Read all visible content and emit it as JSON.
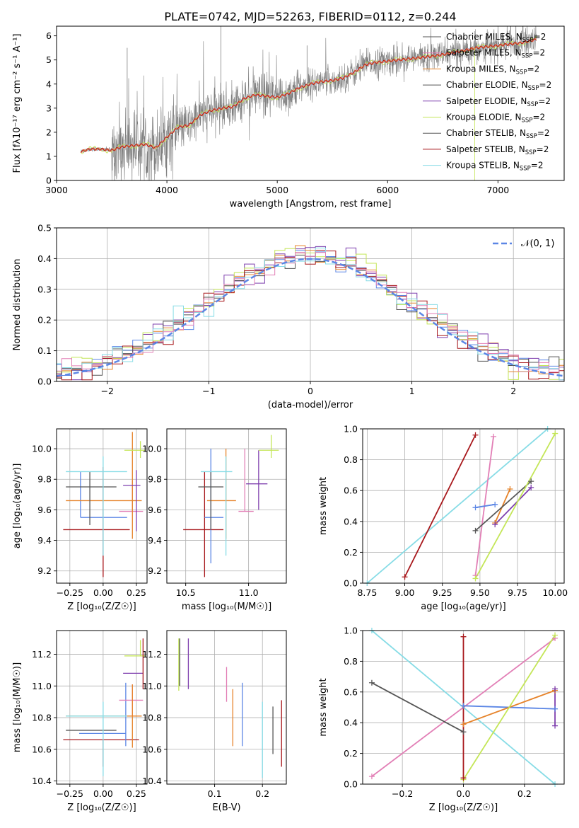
{
  "title": "PLATE=0742, MJD=52263, FIBERID=0112, z=0.244",
  "colors": {
    "C0": "#5b86e5",
    "C1": "#e6832a",
    "C2": "#7e3fae",
    "C3": "#c4e658",
    "C4": "#555555",
    "C5": "#a8181c",
    "C6": "#87dce6",
    "C7": "#e27fb6",
    "data": "#7f7f7f"
  },
  "chart_data": [
    {
      "id": "spectrum",
      "type": "line",
      "xlabel": "wavelength [Angstrom, rest frame]",
      "ylabel": "Flux [f$_\\lambda$ $10^{-17}$ erg cm$^{-2}$ s$^{-1}$ A$^{-1}$]",
      "ylabel_plain": "Flux [fλ10⁻¹⁷ erg cm⁻² s⁻¹ A⁻¹]",
      "xlim": [
        3000,
        7600
      ],
      "ylim": [
        0,
        6.4
      ],
      "xticks": [
        "3000",
        "4000",
        "5000",
        "6000",
        "7000"
      ],
      "yticks": [
        "0",
        "1",
        "2",
        "3",
        "4",
        "5",
        "6"
      ],
      "legend_position": "right",
      "legend": [
        {
          "label": "Chabrier MILES, N",
          "sub": "SSP",
          "tail": "=2",
          "color": "C4"
        },
        {
          "label": "Salpeter MILES, N",
          "sub": "SSP",
          "tail": "=2",
          "color": "C7"
        },
        {
          "label": "Kroupa MILES, N",
          "sub": "SSP",
          "tail": "=2",
          "color": "C1"
        },
        {
          "label": "Chabrier ELODIE, N",
          "sub": "SSP",
          "tail": "=2",
          "color": "C4"
        },
        {
          "label": "Salpeter ELODIE, N",
          "sub": "SSP",
          "tail": "=2",
          "color": "C2"
        },
        {
          "label": "Kroupa ELODIE, N",
          "sub": "SSP",
          "tail": "=2",
          "color": "C3"
        },
        {
          "label": "Chabrier STELIB, N",
          "sub": "SSP",
          "tail": "=2",
          "color": "C4"
        },
        {
          "label": "Salpeter STELIB, N",
          "sub": "SSP",
          "tail": "=2",
          "color": "C5"
        },
        {
          "label": "Kroupa STELIB, N",
          "sub": "SSP",
          "tail": "=2",
          "color": "C6"
        }
      ],
      "model_continuum": {
        "x": [
          3220,
          3300,
          3400,
          3500,
          3600,
          3700,
          3800,
          3900,
          4000,
          4100,
          4200,
          4300,
          4400,
          4500,
          4600,
          4700,
          4800,
          4900,
          5000,
          5100,
          5200,
          5300,
          5400,
          5500,
          5600,
          5700,
          5800,
          5900,
          6000,
          6200,
          6400,
          6600,
          6800,
          7000,
          7200,
          7350
        ],
        "y": [
          1.2,
          1.3,
          1.3,
          1.25,
          1.4,
          1.45,
          1.5,
          1.35,
          1.8,
          2.2,
          2.3,
          2.7,
          2.9,
          3.0,
          3.05,
          3.4,
          3.55,
          3.5,
          3.45,
          3.6,
          3.85,
          4.0,
          4.1,
          4.15,
          4.25,
          4.5,
          4.8,
          4.9,
          4.95,
          5.05,
          5.15,
          5.3,
          5.5,
          5.6,
          5.7,
          5.85
        ]
      }
    },
    {
      "id": "residuals",
      "type": "step",
      "xlabel": "(data-model)/error",
      "ylabel": "Normed distribution",
      "xlim": [
        -2.5,
        2.5
      ],
      "ylim": [
        0,
        0.5
      ],
      "xticks": [
        "−2",
        "−1",
        "0",
        "1",
        "2"
      ],
      "yticks": [
        "0.0",
        "0.1",
        "0.2",
        "0.3",
        "0.4",
        "0.5"
      ],
      "grid": true,
      "legend": [
        {
          "label": "𝒩(0, 1)",
          "color": "C0",
          "style": "dashed"
        }
      ],
      "bin_width": 0.1
    },
    {
      "id": "age-Z",
      "type": "scatter-errorbar",
      "xlabel": "Z [log₁₀(Z/Z☉)]",
      "ylabel": "age  [log₁₀(age/yr)]",
      "xlim": [
        -0.35,
        0.33
      ],
      "ylim": [
        9.12,
        10.13
      ],
      "xticks": [
        "−0.25",
        "0.00",
        "0.25"
      ],
      "yticks": [
        "9.2",
        "9.4",
        "9.6",
        "9.8",
        "10.0"
      ],
      "grid": true,
      "points": [
        {
          "x": 0.0,
          "y": 9.47,
          "xerr": [
            0.3,
            0.2
          ],
          "yerr": [
            0.31,
            0.41
          ],
          "color": "C5"
        },
        {
          "x": -0.17,
          "y": 9.55,
          "xerr": [
            0.0,
            0.35
          ],
          "yerr": [
            0.0,
            0.3
          ],
          "color": "C0"
        },
        {
          "x": 0.22,
          "y": 9.59,
          "xerr": [
            0.1,
            0.08
          ],
          "yerr": [
            0.0,
            0.2
          ],
          "color": "C7"
        },
        {
          "x": 0.22,
          "y": 9.66,
          "xerr": [
            0.5,
            0.07
          ],
          "yerr": [
            0.25,
            0.45
          ],
          "color": "C1"
        },
        {
          "x": 0.25,
          "y": 9.76,
          "xerr": [
            0.1,
            0.03
          ],
          "yerr": [
            0.3,
            0.1
          ],
          "color": "C2"
        },
        {
          "x": -0.1,
          "y": 9.75,
          "xerr": [
            0.18,
            0.2
          ],
          "yerr": [
            0.25,
            0.1
          ],
          "color": "C4"
        },
        {
          "x": 0.0,
          "y": 9.85,
          "xerr": [
            0.28,
            0.18
          ],
          "yerr": [
            0.55,
            0.1
          ],
          "color": "C6"
        },
        {
          "x": 0.28,
          "y": 9.99,
          "xerr": [
            0.12,
            0.04
          ],
          "yerr": [
            0.05,
            0.06
          ],
          "color": "C3"
        }
      ]
    },
    {
      "id": "age-mass",
      "type": "scatter-errorbar",
      "xlabel": "mass [log₁₀(M/M☉)]",
      "ylabel": "",
      "xlim": [
        10.35,
        11.3
      ],
      "ylim": [
        9.12,
        10.13
      ],
      "xticks": [
        "10.5",
        "11.0"
      ],
      "yticks": [
        "9.2",
        "9.4",
        "9.6",
        "9.8",
        "10.0"
      ],
      "grid": true,
      "points": [
        {
          "x": 10.65,
          "y": 9.47,
          "xerr": [
            0.17,
            0.15
          ],
          "yerr": [
            0.31,
            0.38
          ],
          "color": "C5"
        },
        {
          "x": 10.7,
          "y": 9.55,
          "xerr": [
            0.05,
            0.1
          ],
          "yerr": [
            0.3,
            0.45
          ],
          "color": "C0"
        },
        {
          "x": 10.97,
          "y": 9.59,
          "xerr": [
            0.05,
            0.07
          ],
          "yerr": [
            0.0,
            0.41
          ],
          "color": "C7"
        },
        {
          "x": 10.82,
          "y": 9.66,
          "xerr": [
            0.15,
            0.08
          ],
          "yerr": [
            0.25,
            0.34
          ],
          "color": "C1"
        },
        {
          "x": 11.08,
          "y": 9.77,
          "xerr": [
            0.1,
            0.07
          ],
          "yerr": [
            0.17,
            0.22
          ],
          "color": "C2"
        },
        {
          "x": 10.7,
          "y": 9.75,
          "xerr": [
            0.1,
            0.1
          ],
          "yerr": [
            0.28,
            0.1
          ],
          "color": "C4"
        },
        {
          "x": 10.82,
          "y": 9.85,
          "xerr": [
            0.2,
            0.05
          ],
          "yerr": [
            0.55,
            0.1
          ],
          "color": "C6"
        },
        {
          "x": 11.18,
          "y": 9.99,
          "xerr": [
            0.1,
            0.06
          ],
          "yerr": [
            0.05,
            0.1
          ],
          "color": "C3"
        }
      ]
    },
    {
      "id": "weight-age",
      "type": "line",
      "xlabel": "age  [log₁₀(age/yr)]",
      "ylabel": "mass weight",
      "xlim": [
        8.72,
        10.06
      ],
      "ylim": [
        0,
        1.0
      ],
      "xticks": [
        "8.75",
        "9.00",
        "9.25",
        "9.50",
        "9.75",
        "10.00"
      ],
      "yticks": [
        "0.0",
        "0.2",
        "0.4",
        "0.6",
        "0.8",
        "1.0"
      ],
      "grid": true,
      "series": [
        {
          "color": "C6",
          "x": [
            8.75,
            9.95
          ],
          "y": [
            0.0,
            1.0
          ]
        },
        {
          "color": "C5",
          "x": [
            9.0,
            9.47
          ],
          "y": [
            0.04,
            0.96
          ]
        },
        {
          "color": "C7",
          "x": [
            9.47,
            9.59
          ],
          "y": [
            0.05,
            0.95
          ]
        },
        {
          "color": "C0",
          "x": [
            9.47,
            9.6
          ],
          "y": [
            0.49,
            0.51
          ]
        },
        {
          "color": "C1",
          "x": [
            9.6,
            9.7
          ],
          "y": [
            0.39,
            0.61
          ]
        },
        {
          "color": "C2",
          "x": [
            9.6,
            9.84
          ],
          "y": [
            0.38,
            0.62
          ]
        },
        {
          "color": "C4",
          "x": [
            9.47,
            9.84
          ],
          "y": [
            0.34,
            0.66
          ]
        },
        {
          "color": "C3",
          "x": [
            9.47,
            10.0
          ],
          "y": [
            0.03,
            0.97
          ]
        }
      ]
    },
    {
      "id": "mass-Z",
      "type": "scatter-errorbar",
      "xlabel": "Z [log₁₀(Z/Z☉)]",
      "ylabel": "mass [log₁₀(M/M☉)]",
      "xlim": [
        -0.35,
        0.33
      ],
      "ylim": [
        10.38,
        11.35
      ],
      "xticks": [
        "−0.25",
        "0.00",
        "0.25"
      ],
      "yticks": [
        "10.4",
        "10.6",
        "10.8",
        "11.0",
        "11.2"
      ],
      "grid": true,
      "points": [
        {
          "x": 0.0,
          "y": 10.66,
          "xerr": [
            0.3,
            0.27
          ],
          "yerr": [
            0.17,
            0.0
          ],
          "color": "C5"
        },
        {
          "x": 0.17,
          "y": 10.7,
          "xerr": [
            0.35,
            0.0
          ],
          "yerr": [
            0.08,
            0.32
          ],
          "color": "C0"
        },
        {
          "x": 0.22,
          "y": 10.91,
          "xerr": [
            0.1,
            0.08
          ],
          "yerr": [
            0.1,
            0.1
          ],
          "color": "C7"
        },
        {
          "x": 0.22,
          "y": 10.81,
          "xerr": [
            0.5,
            0.07
          ],
          "yerr": [
            0.2,
            0.2
          ],
          "color": "C1"
        },
        {
          "x": 0.25,
          "y": 11.08,
          "xerr": [
            0.1,
            0.05
          ],
          "yerr": [
            0.0,
            0.0
          ],
          "color": "C2"
        },
        {
          "x": -0.1,
          "y": 10.72,
          "xerr": [
            0.18,
            0.2
          ],
          "yerr": [
            0.0,
            0.0
          ],
          "color": "C4"
        },
        {
          "x": 0.0,
          "y": 10.81,
          "xerr": [
            0.28,
            0.18
          ],
          "yerr": [
            0.38,
            0.09
          ],
          "color": "C6"
        },
        {
          "x": 0.28,
          "y": 11.19,
          "xerr": [
            0.12,
            0.04
          ],
          "yerr": [
            0.0,
            0.1
          ],
          "color": "C3"
        },
        {
          "x": 0.3,
          "y": 11.2,
          "xerr": [
            0.0,
            0.0
          ],
          "yerr": [
            0.22,
            0.1
          ],
          "color": "C5"
        }
      ]
    },
    {
      "id": "mass-EBV",
      "type": "errorbar",
      "xlabel": "E(B-V)",
      "ylabel": "",
      "xlim": [
        0.0,
        0.25
      ],
      "ylim": [
        10.38,
        11.35
      ],
      "xticks": [
        "0.1",
        "0.2"
      ],
      "yticks": [
        "10.4",
        "10.6",
        "10.8",
        "11.0",
        "11.2"
      ],
      "grid": true,
      "points": [
        {
          "x": 0.025,
          "y": 11.14,
          "yerr": [
            0.17,
            0.16
          ],
          "color": "C3"
        },
        {
          "x": 0.027,
          "y": 11.2,
          "yerr": [
            0.2,
            0.1
          ],
          "color": "C4"
        },
        {
          "x": 0.045,
          "y": 11.2,
          "yerr": [
            0.22,
            0.1
          ],
          "color": "C2"
        },
        {
          "x": 0.125,
          "y": 11.0,
          "yerr": [
            0.1,
            0.12
          ],
          "color": "C7"
        },
        {
          "x": 0.138,
          "y": 10.82,
          "yerr": [
            0.2,
            0.16
          ],
          "color": "C1"
        },
        {
          "x": 0.158,
          "y": 10.82,
          "yerr": [
            0.2,
            0.2
          ],
          "color": "C0"
        },
        {
          "x": 0.2,
          "y": 10.66,
          "yerr": [
            0.24,
            0.24
          ],
          "color": "C6"
        },
        {
          "x": 0.222,
          "y": 10.72,
          "yerr": [
            0.15,
            0.15
          ],
          "color": "C4"
        },
        {
          "x": 0.24,
          "y": 10.7,
          "yerr": [
            0.21,
            0.21
          ],
          "color": "C5"
        }
      ]
    },
    {
      "id": "weight-Z",
      "type": "line",
      "xlabel": "Z [log₁₀(Z/Z☉)]",
      "ylabel": "mass weight",
      "xlim": [
        -0.33,
        0.33
      ],
      "ylim": [
        0,
        1.0
      ],
      "xticks": [
        "−0.2",
        "0.0",
        "0.2"
      ],
      "yticks": [
        "0.0",
        "0.2",
        "0.4",
        "0.6",
        "0.8",
        "1.0"
      ],
      "grid": true,
      "series": [
        {
          "color": "C6",
          "x": [
            -0.3,
            0.3
          ],
          "y": [
            1.0,
            0.0
          ]
        },
        {
          "color": "C7",
          "x": [
            -0.3,
            0.3
          ],
          "y": [
            0.05,
            0.95
          ]
        },
        {
          "color": "C4",
          "x": [
            -0.3,
            0.0
          ],
          "y": [
            0.66,
            0.34
          ]
        },
        {
          "color": "C0",
          "x": [
            0.0,
            0.3
          ],
          "y": [
            0.51,
            0.49
          ]
        },
        {
          "color": "C1",
          "x": [
            0.0,
            0.3
          ],
          "y": [
            0.39,
            0.61
          ]
        },
        {
          "color": "C3",
          "x": [
            0.0,
            0.3
          ],
          "y": [
            0.03,
            0.97
          ]
        },
        {
          "color": "C5",
          "x": [
            0.0,
            0.0
          ],
          "y": [
            0.04,
            0.96
          ]
        },
        {
          "color": "C2",
          "x": [
            0.3,
            0.3
          ],
          "y": [
            0.38,
            0.62
          ]
        }
      ]
    }
  ]
}
